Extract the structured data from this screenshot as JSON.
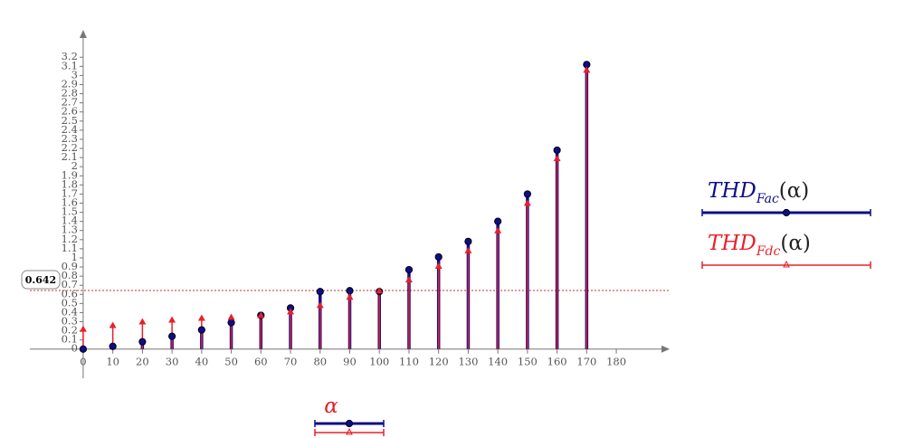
{
  "chart_data": {
    "type": "stem",
    "x_label": "α",
    "x": [
      0,
      10,
      20,
      30,
      40,
      50,
      60,
      70,
      80,
      90,
      100,
      110,
      120,
      130,
      140,
      150,
      160,
      170
    ],
    "series": [
      {
        "name": "THD",
        "subscript": "Fac",
        "argument": "(α)",
        "color": "#0d0d8a",
        "marker": "circle",
        "values": [
          0,
          0.03,
          0.08,
          0.14,
          0.21,
          0.29,
          0.37,
          0.45,
          0.63,
          0.64,
          0.63,
          0.87,
          1.01,
          1.18,
          1.4,
          1.7,
          2.18,
          3.12
        ]
      },
      {
        "name": "THD",
        "subscript": "Fdc",
        "argument": "(α)",
        "color": "#e8202a",
        "marker": "triangle",
        "values": [
          0.21,
          0.25,
          0.29,
          0.31,
          0.33,
          0.34,
          0.36,
          0.4,
          0.47,
          0.56,
          0.63,
          0.75,
          0.9,
          1.07,
          1.29,
          1.59,
          2.08,
          3.05
        ]
      }
    ],
    "xlim": [
      -18,
      198
    ],
    "ylim": [
      -0.32,
      3.5
    ],
    "xticks": [
      0,
      10,
      20,
      30,
      40,
      50,
      60,
      70,
      80,
      90,
      100,
      110,
      120,
      130,
      140,
      150,
      160,
      170,
      180
    ],
    "yticks": [
      0,
      0.1,
      0.2,
      0.3,
      0.4,
      0.5,
      0.6,
      0.7,
      0.8,
      0.9,
      1,
      1.1,
      1.2,
      1.3,
      1.4,
      1.5,
      1.6,
      1.7,
      1.8,
      1.9,
      2,
      2.1,
      2.2,
      2.3,
      2.4,
      2.5,
      2.6,
      2.7,
      2.8,
      2.9,
      3,
      3.1,
      3.2
    ],
    "marker_line": 0.642
  }
}
